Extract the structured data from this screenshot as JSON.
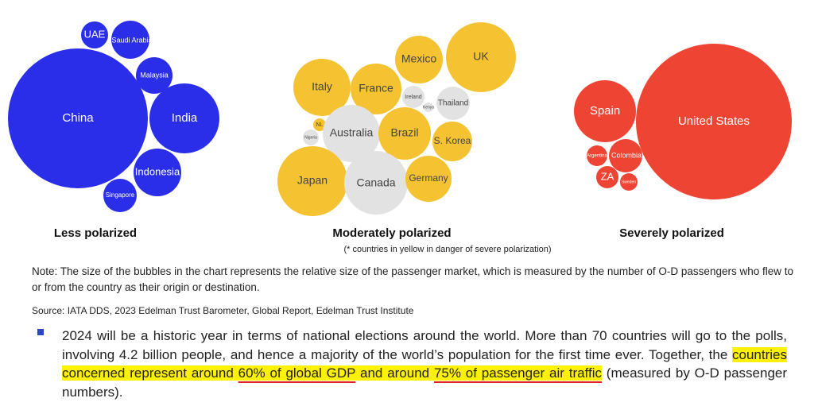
{
  "groups": [
    {
      "title": "Less polarized",
      "bubbles": [
        "China",
        "India",
        "Indonesia",
        "Malaysia",
        "Saudi Arabia",
        "UAE",
        "Singapore"
      ]
    },
    {
      "title": "Moderately polarized",
      "subtitle": "(* countries in yellow in danger of severe polarization)",
      "bubbles": [
        "Mexico",
        "UK",
        "Italy",
        "France",
        "Ireland",
        "Kenya",
        "Thailand",
        "NL",
        "Nigeria",
        "Australia",
        "Brazil",
        "S. Korea",
        "Japan",
        "Canada",
        "Germany"
      ]
    },
    {
      "title": "Severely polarized",
      "bubbles": [
        "United States",
        "Spain",
        "Argentina",
        "Colombia",
        "ZA",
        "Sweden"
      ]
    }
  ],
  "note": "Note: The size of the bubbles in the chart represents the relative size of the passenger market, which is measured by the number of O-D passengers who flew to or from the country as their origin or destination.",
  "source": "Source: IATA DDS, 2023 Edelman Trust Barometer, Global Report, Edelman Trust Institute",
  "bullet": [
    "2024 will be a historic year in terms of national elections around the world. More than 70 countries will go to the polls, involving 4.2 billion people, and hence a majority of the world’s population for the first time ever. Together, the ",
    "countries concerned represent around ",
    "60% of global GDP",
    " and around ",
    "75% of passenger air traffic",
    " (measured by O-D passenger numbers)."
  ]
}
